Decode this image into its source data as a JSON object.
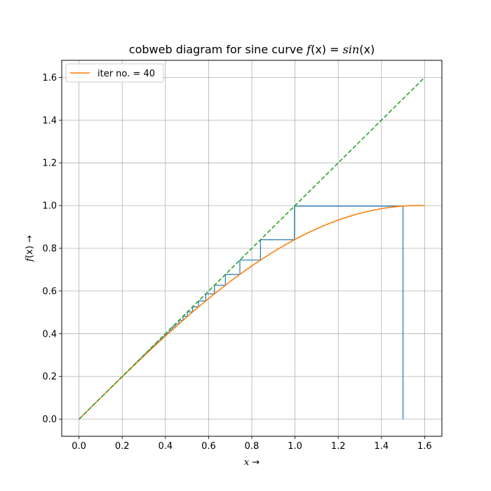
{
  "chart_data": {
    "type": "line",
    "title": {
      "prefix": "cobweb diagram for sine curve ",
      "f": "f",
      "x1": "(x) = ",
      "sin": "sin",
      "x2": "(x)"
    },
    "xlabel": {
      "var": "x",
      "arrow": " →"
    },
    "ylabel": {
      "var": "f",
      "rest": "(x) →"
    },
    "xlim": [
      -0.08,
      1.68
    ],
    "ylim": [
      -0.08,
      1.68
    ],
    "x_ticks": [
      0.0,
      0.2,
      0.4,
      0.6,
      0.8,
      1.0,
      1.2,
      1.4,
      1.6
    ],
    "y_ticks": [
      0.0,
      0.2,
      0.4,
      0.6,
      0.8,
      1.0,
      1.2,
      1.4,
      1.6
    ],
    "x_tick_labels": [
      "0.0",
      "0.2",
      "0.4",
      "0.6",
      "0.8",
      "1.0",
      "1.2",
      "1.4",
      "1.6"
    ],
    "y_tick_labels": [
      "0.0",
      "0.2",
      "0.4",
      "0.6",
      "0.8",
      "1.0",
      "1.2",
      "1.4",
      "1.6"
    ],
    "grid": true,
    "legend": {
      "placement": "top-left",
      "label": "iter no. = 40"
    },
    "series": [
      {
        "name": "iter no. = 40",
        "kind": "sin(x)",
        "color": "#ff7f0e",
        "x_range": [
          0,
          1.6
        ],
        "style": "solid"
      },
      {
        "kind": "identity y = x",
        "color": "#2ca02c",
        "x_range": [
          0,
          1.6
        ],
        "style": "dashed"
      },
      {
        "kind": "cobweb",
        "color": "#1f77b4",
        "x0": 1.5,
        "iterations": 40,
        "style": "solid"
      }
    ]
  },
  "colors": {
    "sine": "#ff7f0e",
    "identity": "#2ca02c",
    "cobweb": "#1f77b4",
    "grid": "#b0b0b0"
  }
}
